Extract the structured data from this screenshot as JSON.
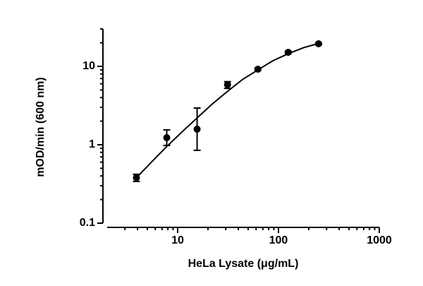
{
  "chart_data": {
    "type": "scatter",
    "x_label": "HeLa Lysate (μg/mL)",
    "y_label": "mOD/min (600 nm)",
    "log_x": true,
    "log_y": true,
    "xlim": [
      2,
      1000
    ],
    "xticks": [
      10,
      100,
      1000
    ],
    "xminorticks": [
      3,
      4,
      5,
      6,
      7,
      8,
      9,
      20,
      30,
      40,
      50,
      60,
      70,
      80,
      90,
      200,
      300,
      400,
      500,
      600,
      700,
      800,
      900
    ],
    "ylim": [
      0.1,
      30
    ],
    "yticks": [
      0.1,
      1,
      10
    ],
    "yminorticks": [
      0.2,
      0.3,
      0.4,
      0.5,
      0.6,
      0.7,
      0.8,
      0.9,
      2,
      3,
      4,
      5,
      6,
      7,
      8,
      9,
      20,
      30
    ],
    "series": [
      {
        "type": "scatter",
        "color": "#000000",
        "x": [
          3.9,
          7.8,
          15.6,
          31.25,
          62.5,
          125,
          250
        ],
        "values": [
          0.38,
          1.23,
          1.58,
          5.83,
          9.2,
          15.1,
          19.4
        ],
        "error_low": [
          0.04,
          0.25,
          0.73,
          0.6,
          0.3,
          0.5,
          0.5
        ],
        "error_high": [
          0.04,
          0.32,
          1.36,
          0.55,
          0.3,
          0.5,
          0.5
        ]
      },
      {
        "type": "line",
        "color": "#000000",
        "x": [
          3.9,
          5.5,
          7.8,
          11,
          15.6,
          22,
          31.25,
          44,
          62.5,
          88,
          125,
          177,
          250
        ],
        "values": [
          0.38,
          0.6,
          0.95,
          1.45,
          2.2,
          3.3,
          4.8,
          6.8,
          9.0,
          11.8,
          14.5,
          17.3,
          19.6
        ]
      }
    ]
  }
}
